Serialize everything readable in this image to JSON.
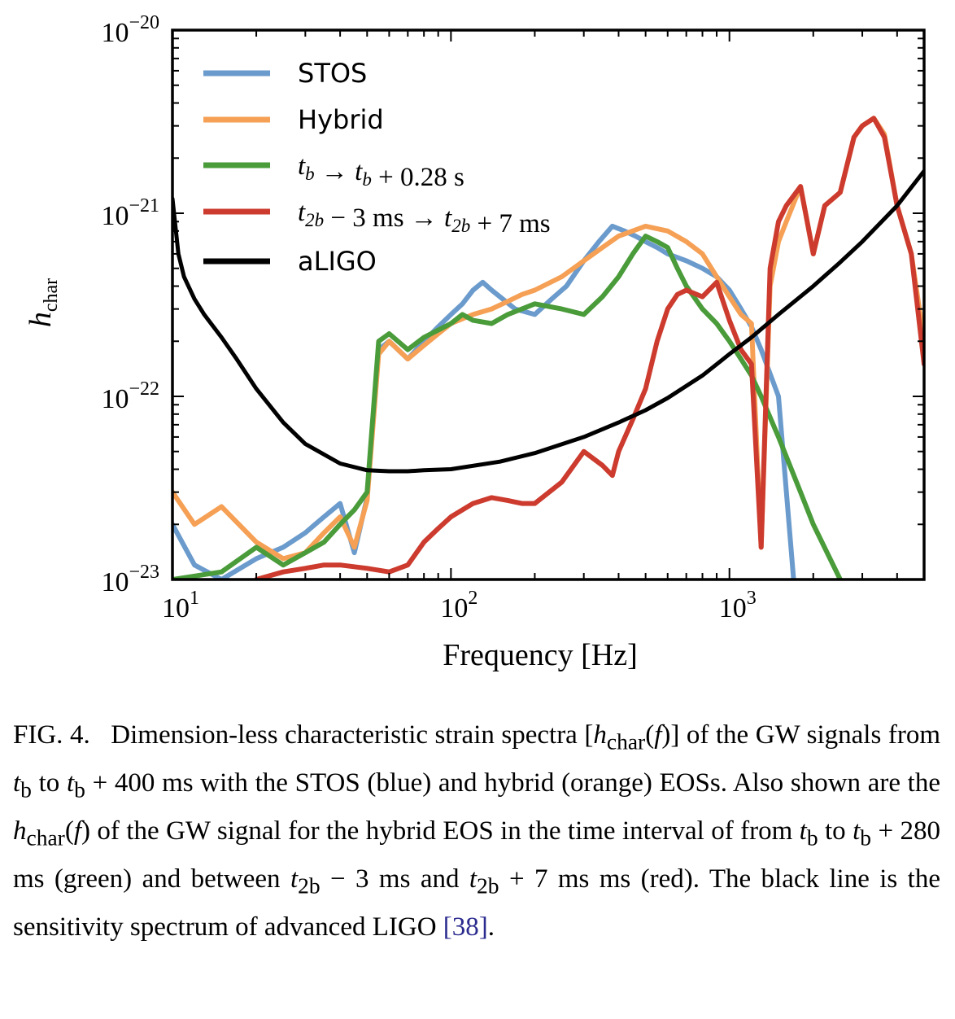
{
  "chart_data": {
    "type": "line",
    "xlabel": "Frequency [Hz]",
    "ylabel": "h_char",
    "xscale": "log",
    "yscale": "log",
    "xlim": [
      10,
      5000
    ],
    "ylim": [
      1e-23,
      1e-20
    ],
    "grid": false,
    "legend_position": "top-left",
    "x_tick_labels": [
      {
        "value": 10,
        "base": "10",
        "exp": "1"
      },
      {
        "value": 100,
        "base": "10",
        "exp": "2"
      },
      {
        "value": 1000,
        "base": "10",
        "exp": "3"
      }
    ],
    "y_tick_labels": [
      {
        "value": 1e-23,
        "base": "10",
        "exp": "−23"
      },
      {
        "value": 1e-22,
        "base": "10",
        "exp": "−22"
      },
      {
        "value": 1e-21,
        "base": "10",
        "exp": "−21"
      },
      {
        "value": 1e-20,
        "base": "10",
        "exp": "−20"
      }
    ],
    "series": [
      {
        "name": "STOS",
        "color": "#6b9bcc",
        "x": [
          10,
          12,
          15,
          20,
          25,
          30,
          35,
          40,
          45,
          50,
          55,
          60,
          70,
          80,
          90,
          100,
          110,
          120,
          130,
          140,
          150,
          170,
          200,
          230,
          260,
          300,
          340,
          380,
          420,
          460,
          500,
          550,
          600,
          700,
          800,
          900,
          1000,
          1100,
          1200,
          1300,
          1500,
          1700
        ],
        "y": [
          2e-23,
          1.2e-23,
          1e-23,
          1.3e-23,
          1.5e-23,
          1.8e-23,
          2.2e-23,
          2.6e-23,
          1.4e-23,
          2.8e-23,
          1.8e-22,
          2e-22,
          1.6e-22,
          2e-22,
          2.4e-22,
          2.8e-22,
          3.2e-22,
          3.8e-22,
          4.2e-22,
          3.8e-22,
          3.5e-22,
          3e-22,
          2.8e-22,
          3.4e-22,
          4e-22,
          5.5e-22,
          7e-22,
          8.5e-22,
          8e-22,
          7.5e-22,
          7e-22,
          6.5e-22,
          6e-22,
          5.5e-22,
          5e-22,
          4.5e-22,
          3.8e-22,
          3e-22,
          2.4e-22,
          1.8e-22,
          1e-22,
          1e-23
        ]
      },
      {
        "name": "Hybrid",
        "color": "#f5a055",
        "x": [
          10,
          12,
          15,
          20,
          25,
          30,
          35,
          40,
          45,
          50,
          55,
          60,
          70,
          80,
          90,
          100,
          120,
          140,
          160,
          180,
          200,
          250,
          300,
          350,
          400,
          500,
          600,
          700,
          800,
          900,
          1000,
          1100,
          1200,
          1300,
          1400,
          1500,
          1600,
          1800,
          2000,
          2200,
          2500,
          2800,
          3000,
          3300,
          3600,
          4000,
          4500,
          5000
        ],
        "y": [
          3e-23,
          2e-23,
          2.5e-23,
          1.6e-23,
          1.3e-23,
          1.4e-23,
          1.8e-23,
          2.2e-23,
          1.5e-23,
          2.7e-23,
          1.7e-22,
          2e-22,
          1.6e-22,
          1.9e-22,
          2.2e-22,
          2.5e-22,
          2.8e-22,
          3e-22,
          3.3e-22,
          3.6e-22,
          3.8e-22,
          4.5e-22,
          5.5e-22,
          6.5e-22,
          7.5e-22,
          8.5e-22,
          8e-22,
          7e-22,
          6e-22,
          4.5e-22,
          3.5e-22,
          2.8e-22,
          2.5e-22,
          1.5e-23,
          4e-22,
          7e-22,
          9e-22,
          1.4e-21,
          6e-22,
          1.1e-21,
          1.3e-21,
          2.6e-21,
          3e-21,
          3.3e-21,
          2.7e-21,
          1.1e-21,
          6e-22,
          2e-22
        ]
      },
      {
        "name": "t_b → t_b + 0.28 s",
        "color": "#4a9b3a",
        "x": [
          10,
          15,
          20,
          25,
          30,
          35,
          40,
          45,
          50,
          55,
          60,
          70,
          80,
          90,
          100,
          110,
          120,
          140,
          160,
          180,
          200,
          250,
          300,
          350,
          400,
          450,
          500,
          550,
          600,
          650,
          700,
          800,
          900,
          1000,
          1100,
          1200,
          1300,
          1500,
          1800,
          2000,
          2500
        ],
        "y": [
          1e-23,
          1.1e-23,
          1.5e-23,
          1.2e-23,
          1.4e-23,
          1.6e-23,
          2e-23,
          2.4e-23,
          3e-23,
          2e-22,
          2.2e-22,
          1.8e-22,
          2.1e-22,
          2.3e-22,
          2.5e-22,
          2.8e-22,
          2.6e-22,
          2.5e-22,
          2.8e-22,
          3e-22,
          3.2e-22,
          3e-22,
          2.8e-22,
          3.5e-22,
          4.5e-22,
          6e-22,
          7.5e-22,
          7e-22,
          6.5e-22,
          5e-22,
          4e-22,
          3e-22,
          2.5e-22,
          2e-22,
          1.6e-22,
          1.3e-22,
          1e-22,
          6e-23,
          3e-23,
          2e-23,
          1e-23
        ]
      },
      {
        "name": "t_2b − 3 ms → t_2b + 7 ms",
        "color": "#cc3b2e",
        "x": [
          20,
          25,
          30,
          35,
          40,
          50,
          60,
          70,
          80,
          90,
          100,
          120,
          140,
          160,
          180,
          200,
          250,
          300,
          350,
          380,
          400,
          450,
          500,
          550,
          600,
          650,
          700,
          800,
          900,
          1000,
          1100,
          1200,
          1300,
          1400,
          1500,
          1600,
          1800,
          2000,
          2200,
          2500,
          2800,
          3000,
          3300,
          3600,
          4000,
          4500,
          5000
        ],
        "y": [
          1e-23,
          1.1e-23,
          1.15e-23,
          1.2e-23,
          1.2e-23,
          1.15e-23,
          1.1e-23,
          1.2e-23,
          1.6e-23,
          1.9e-23,
          2.2e-23,
          2.6e-23,
          2.8e-23,
          2.7e-23,
          2.6e-23,
          2.6e-23,
          3.4e-23,
          5e-23,
          4.2e-23,
          3.7e-23,
          5e-23,
          7.5e-23,
          1.1e-22,
          2e-22,
          3e-22,
          3.6e-22,
          3.8e-22,
          3.5e-22,
          4.2e-22,
          2.6e-22,
          1.8e-22,
          1.5e-22,
          1.5e-23,
          5e-22,
          9e-22,
          1.1e-21,
          1.4e-21,
          6e-22,
          1.1e-21,
          1.3e-21,
          2.6e-21,
          3e-21,
          3.3e-21,
          2.6e-21,
          1.1e-21,
          6e-22,
          1.5e-22
        ]
      },
      {
        "name": "aLIGO",
        "color": "#000000",
        "x": [
          10,
          10.5,
          11,
          12,
          13,
          15,
          17,
          20,
          25,
          30,
          40,
          50,
          60,
          70,
          80,
          100,
          150,
          200,
          300,
          400,
          500,
          600,
          800,
          1000,
          1200,
          1500,
          2000,
          2500,
          3000,
          4000,
          5000
        ],
        "y": [
          1.2e-21,
          6e-22,
          4.5e-22,
          3.4e-22,
          2.8e-22,
          2.1e-22,
          1.6e-22,
          1.1e-22,
          7.2e-23,
          5.5e-23,
          4.3e-23,
          3.95e-23,
          3.9e-23,
          3.9e-23,
          3.95e-23,
          4e-23,
          4.4e-23,
          4.9e-23,
          6e-23,
          7.2e-23,
          8.4e-23,
          9.8e-23,
          1.3e-22,
          1.7e-22,
          2.1e-22,
          2.8e-22,
          4e-22,
          5.4e-22,
          7e-22,
          1.1e-21,
          1.7e-21
        ]
      }
    ]
  },
  "caption": {
    "label": "FIG. 4.",
    "text_1": "Dimension-less characteristic strain spectra [",
    "hchar_f": "h",
    "hchar_sub": "char",
    "f_open": "(",
    "f_var": "f",
    "f_close": ")]",
    "text_2": " of the GW signals from ",
    "tb": "t",
    "tb_sub": "b",
    "text_3": " to ",
    "text_4": " + 400 ms with the STOS (blue) and hybrid (orange) EOSs. Also shown are the ",
    "text_5": " of the GW signal for the hybrid EOS in the time interval of from ",
    "text_6": " + 280 ms (green) and between ",
    "t2b_sub": "2b",
    "text_7": " − 3 ms and ",
    "text_8": " + 7 ms ms (red). The black line is the sensitivity spectrum of advanced LIGO ",
    "cite": "[38]",
    "text_9": "."
  }
}
